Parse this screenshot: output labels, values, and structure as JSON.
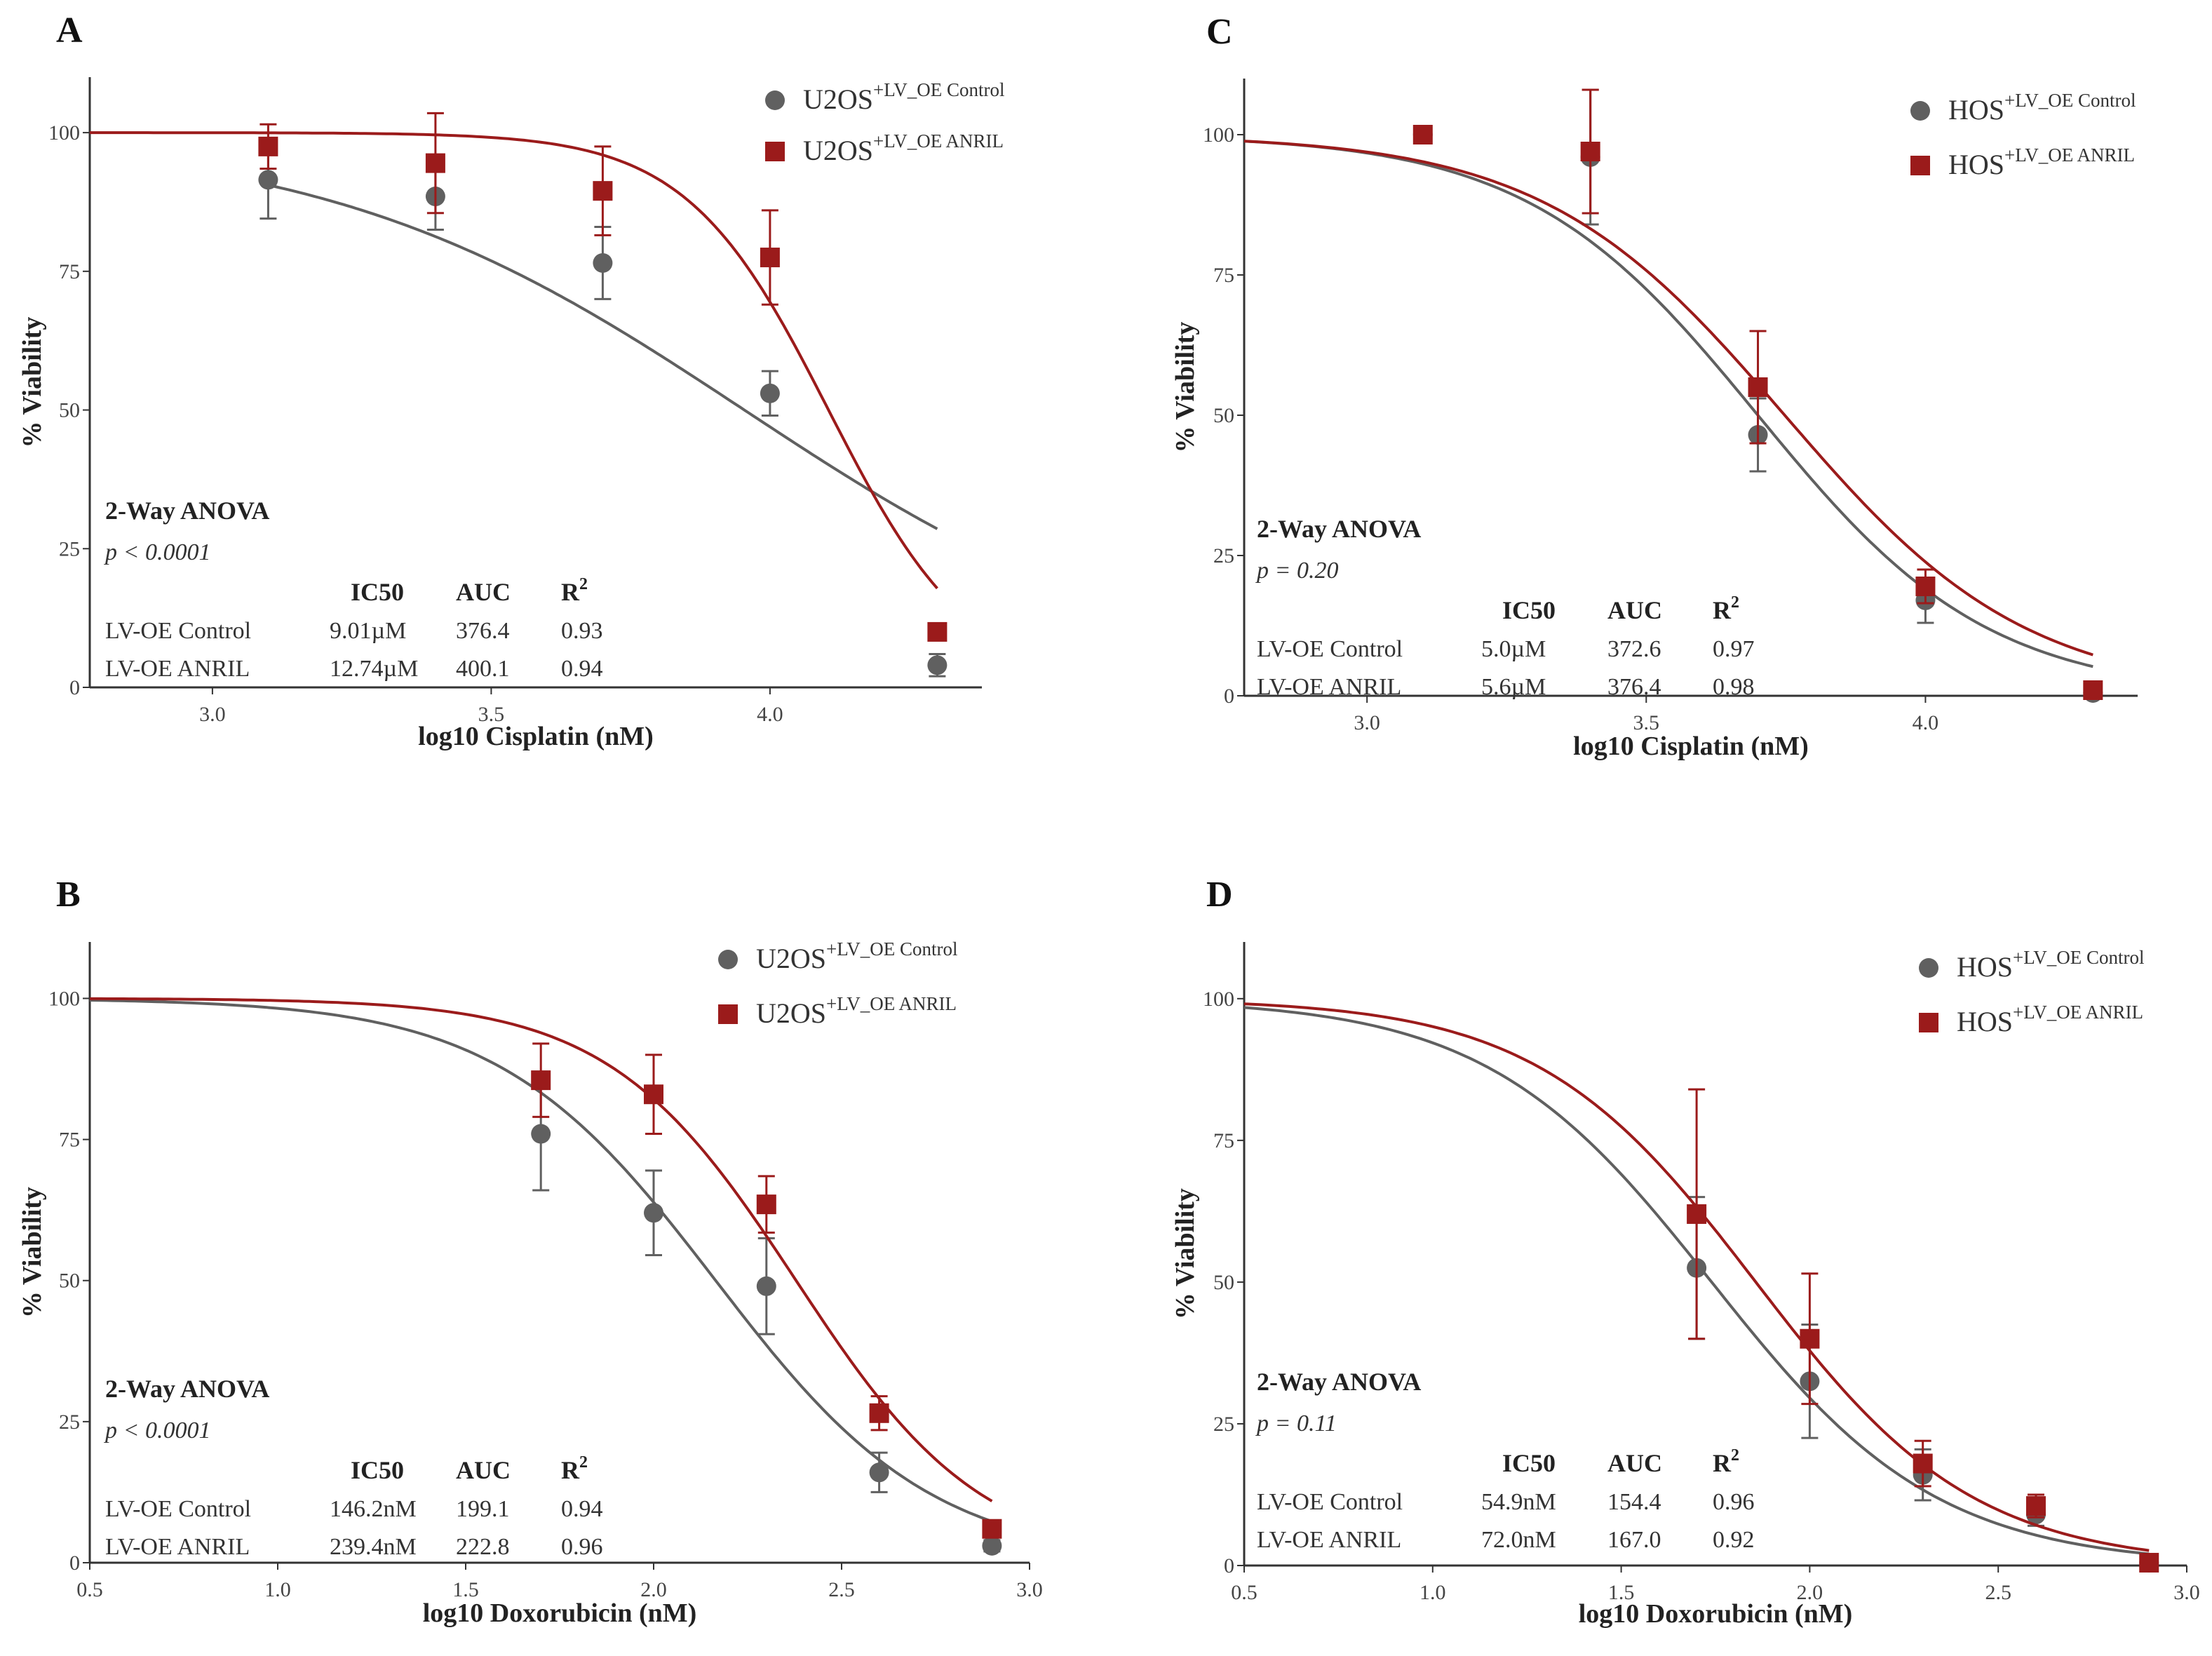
{
  "colors": {
    "control": "#606060",
    "anril": "#9B1B1B",
    "axis": "#333333"
  },
  "chart_data": [
    {
      "panel": "A",
      "type": "scatter",
      "xlabel": "log10 Cisplatin (nM)",
      "ylabel": "% Viability",
      "xlim": [
        2.78,
        4.38
      ],
      "ylim": [
        0,
        110
      ],
      "xticks": [
        "3.0",
        "3.5",
        "4.0"
      ],
      "xtick_values": [
        3.0,
        3.5,
        4.0
      ],
      "yticks": [
        "0",
        "25",
        "50",
        "75",
        "100"
      ],
      "ytick_values": [
        0,
        25,
        50,
        75,
        100
      ],
      "legend": {
        "placement": "top-right",
        "entries": [
          {
            "base": "U2OS",
            "sup": "+LV_OE Control",
            "series": 0
          },
          {
            "base": "U2OS",
            "sup": "+LV_OE ANRIL",
            "series": 1
          }
        ]
      },
      "series": [
        {
          "name": "U2OS+LV_OE Control",
          "marker": "circle",
          "x": [
            3.1,
            3.4,
            3.7,
            4.0,
            4.3
          ],
          "y": [
            91.5,
            88.5,
            76.5,
            53,
            4
          ],
          "err": [
            7,
            6,
            6.5,
            4,
            2
          ],
          "ic50_log": 3.954,
          "hill": 1.15,
          "fit_range": [
            3.1,
            4.3
          ]
        },
        {
          "name": "U2OS+LV_OE ANRIL",
          "marker": "square",
          "x": [
            3.1,
            3.4,
            3.7,
            4.0,
            4.3
          ],
          "y": [
            97.5,
            94.5,
            89.5,
            77.5,
            10
          ],
          "err": [
            4,
            9,
            8,
            8.5,
            1.5
          ],
          "ic50_log": 4.105,
          "hill": 3.4,
          "fit_range": [
            2.78,
            4.3
          ]
        }
      ],
      "stats": {
        "title": "2-Way ANOVA",
        "p": "p < 0.0001",
        "headers": [
          "IC50",
          "AUC",
          "R"
        ],
        "sup": "2",
        "rows": [
          {
            "label": "LV-OE Control",
            "ic50": "9.01µM",
            "auc": "376.4",
            "r2": "0.93"
          },
          {
            "label": "LV-OE ANRIL",
            "ic50": "12.74µM",
            "auc": "400.1",
            "r2": "0.94"
          }
        ]
      }
    },
    {
      "panel": "B",
      "type": "scatter",
      "xlabel": "log10 Doxorubicin (nM)",
      "ylabel": "% Viability",
      "xlim": [
        0.5,
        3.0
      ],
      "ylim": [
        0,
        110
      ],
      "xticks": [
        "0.5",
        "1.0",
        "1.5",
        "2.0",
        "2.5",
        "3.0"
      ],
      "xtick_values": [
        0.5,
        1.0,
        1.5,
        2.0,
        2.5,
        3.0
      ],
      "yticks": [
        "0",
        "25",
        "50",
        "75",
        "100"
      ],
      "ytick_values": [
        0,
        25,
        50,
        75,
        100
      ],
      "legend": {
        "placement": "top-right",
        "entries": [
          {
            "base": "U2OS",
            "sup": "+LV_OE Control",
            "series": 0
          },
          {
            "base": "U2OS",
            "sup": "+LV_OE ANRIL",
            "series": 1
          }
        ]
      },
      "series": [
        {
          "name": "U2OS+LV_OE Control",
          "marker": "circle",
          "x": [
            1.7,
            2.0,
            2.3,
            2.6,
            2.9
          ],
          "y": [
            76,
            62,
            49,
            16,
            3
          ],
          "err": [
            10,
            7.5,
            8.5,
            3.5,
            1
          ],
          "ic50_log": 2.165,
          "hill": 1.5,
          "fit_range": [
            0.5,
            2.9
          ]
        },
        {
          "name": "U2OS+LV_OE ANRIL",
          "marker": "square",
          "x": [
            1.7,
            2.0,
            2.3,
            2.6,
            2.9
          ],
          "y": [
            85.5,
            83,
            63.5,
            26.5,
            6
          ],
          "err": [
            6.5,
            7,
            5,
            3,
            1
          ],
          "ic50_log": 2.379,
          "hill": 1.75,
          "fit_range": [
            0.5,
            2.9
          ]
        }
      ],
      "stats": {
        "title": "2-Way ANOVA",
        "p": "p < 0.0001",
        "headers": [
          "IC50",
          "AUC",
          "R"
        ],
        "sup": "2",
        "rows": [
          {
            "label": "LV-OE Control",
            "ic50": "146.2nM",
            "auc": "199.1",
            "r2": "0.94"
          },
          {
            "label": "LV-OE ANRIL",
            "ic50": "239.4nM",
            "auc": "222.8",
            "r2": "0.96"
          }
        ]
      }
    },
    {
      "panel": "C",
      "type": "scatter",
      "xlabel": "log10 Cisplatin (nM)",
      "ylabel": "% Viability",
      "xlim": [
        2.78,
        4.38
      ],
      "ylim": [
        0,
        110
      ],
      "xticks": [
        "3.0",
        "3.5",
        "4.0"
      ],
      "xtick_values": [
        3.0,
        3.5,
        4.0
      ],
      "yticks": [
        "0",
        "25",
        "50",
        "75",
        "100"
      ],
      "ytick_values": [
        0,
        25,
        50,
        75,
        100
      ],
      "legend": {
        "placement": "top-right",
        "entries": [
          {
            "base": "HOS",
            "sup": "+LV_OE Control",
            "series": 0
          },
          {
            "base": "HOS",
            "sup": "+LV_OE ANRIL",
            "series": 1
          }
        ]
      },
      "series": [
        {
          "name": "HOS+LV_OE Control",
          "marker": "circle",
          "x": [
            3.1,
            3.4,
            3.7,
            4.0,
            4.3
          ],
          "y": [
            100,
            96,
            46.5,
            17,
            0.5
          ],
          "err": [
            0.5,
            12,
            6.5,
            4,
            0.5
          ],
          "ic50_log": 3.7,
          "hill": 2.1,
          "fit_range": [
            2.78,
            4.3
          ]
        },
        {
          "name": "HOS+LV_OE ANRIL",
          "marker": "square",
          "x": [
            3.1,
            3.4,
            3.7,
            4.0,
            4.3
          ],
          "y": [
            100,
            97,
            55,
            19.5,
            1
          ],
          "err": [
            0.5,
            11,
            10,
            3,
            0.5
          ],
          "ic50_log": 3.748,
          "hill": 2.0,
          "fit_range": [
            2.78,
            4.3
          ]
        }
      ],
      "stats": {
        "title": "2-Way ANOVA",
        "p": "p = 0.20",
        "headers": [
          "IC50",
          "AUC",
          "R"
        ],
        "sup": "2",
        "rows": [
          {
            "label": "LV-OE Control",
            "ic50": "5.0µM",
            "auc": "372.6",
            "r2": "0.97"
          },
          {
            "label": "LV-OE ANRIL",
            "ic50": "5.6µM",
            "auc": "376.4",
            "r2": "0.98"
          }
        ]
      }
    },
    {
      "panel": "D",
      "type": "scatter",
      "xlabel": "log10 Doxorubicin (nM)",
      "ylabel": "% Viability",
      "xlim": [
        0.5,
        3.0
      ],
      "ylim": [
        0,
        110
      ],
      "xticks": [
        "0.5",
        "1.0",
        "1.5",
        "2.0",
        "2.5",
        "3.0"
      ],
      "xtick_values": [
        0.5,
        1.0,
        1.5,
        2.0,
        2.5,
        3.0
      ],
      "yticks": [
        "0",
        "25",
        "50",
        "75",
        "100"
      ],
      "ytick_values": [
        0,
        25,
        50,
        75,
        100
      ],
      "legend": {
        "placement": "top-right",
        "entries": [
          {
            "base": "HOS",
            "sup": "+LV_OE Control",
            "series": 0
          },
          {
            "base": "HOS",
            "sup": "+LV_OE ANRIL",
            "series": 1
          }
        ]
      },
      "series": [
        {
          "name": "HOS+LV_OE Control",
          "marker": "circle",
          "x": [
            1.7,
            2.0,
            2.3,
            2.6,
            2.9
          ],
          "y": [
            52.5,
            32.5,
            16,
            9,
            0.5
          ],
          "err": [
            12.5,
            10,
            4.5,
            2,
            0.5
          ],
          "ic50_log": 1.74,
          "hill": 1.45,
          "fit_range": [
            0.5,
            2.9
          ]
        },
        {
          "name": "HOS+LV_OE ANRIL",
          "marker": "square",
          "x": [
            1.7,
            2.0,
            2.3,
            2.6,
            2.9
          ],
          "y": [
            62,
            40,
            18,
            10.5,
            0.5
          ],
          "err": [
            22,
            11.5,
            4,
            2,
            0.5
          ],
          "ic50_log": 1.857,
          "hill": 1.5,
          "fit_range": [
            0.5,
            2.9
          ]
        }
      ],
      "stats": {
        "title": "2-Way ANOVA",
        "p": "p = 0.11",
        "headers": [
          "IC50",
          "AUC",
          "R"
        ],
        "sup": "2",
        "rows": [
          {
            "label": "LV-OE Control",
            "ic50": "54.9nM",
            "auc": "154.4",
            "r2": "0.96"
          },
          {
            "label": "LV-OE ANRIL",
            "ic50": "72.0nM",
            "auc": "167.0",
            "r2": "0.92"
          }
        ]
      }
    }
  ]
}
